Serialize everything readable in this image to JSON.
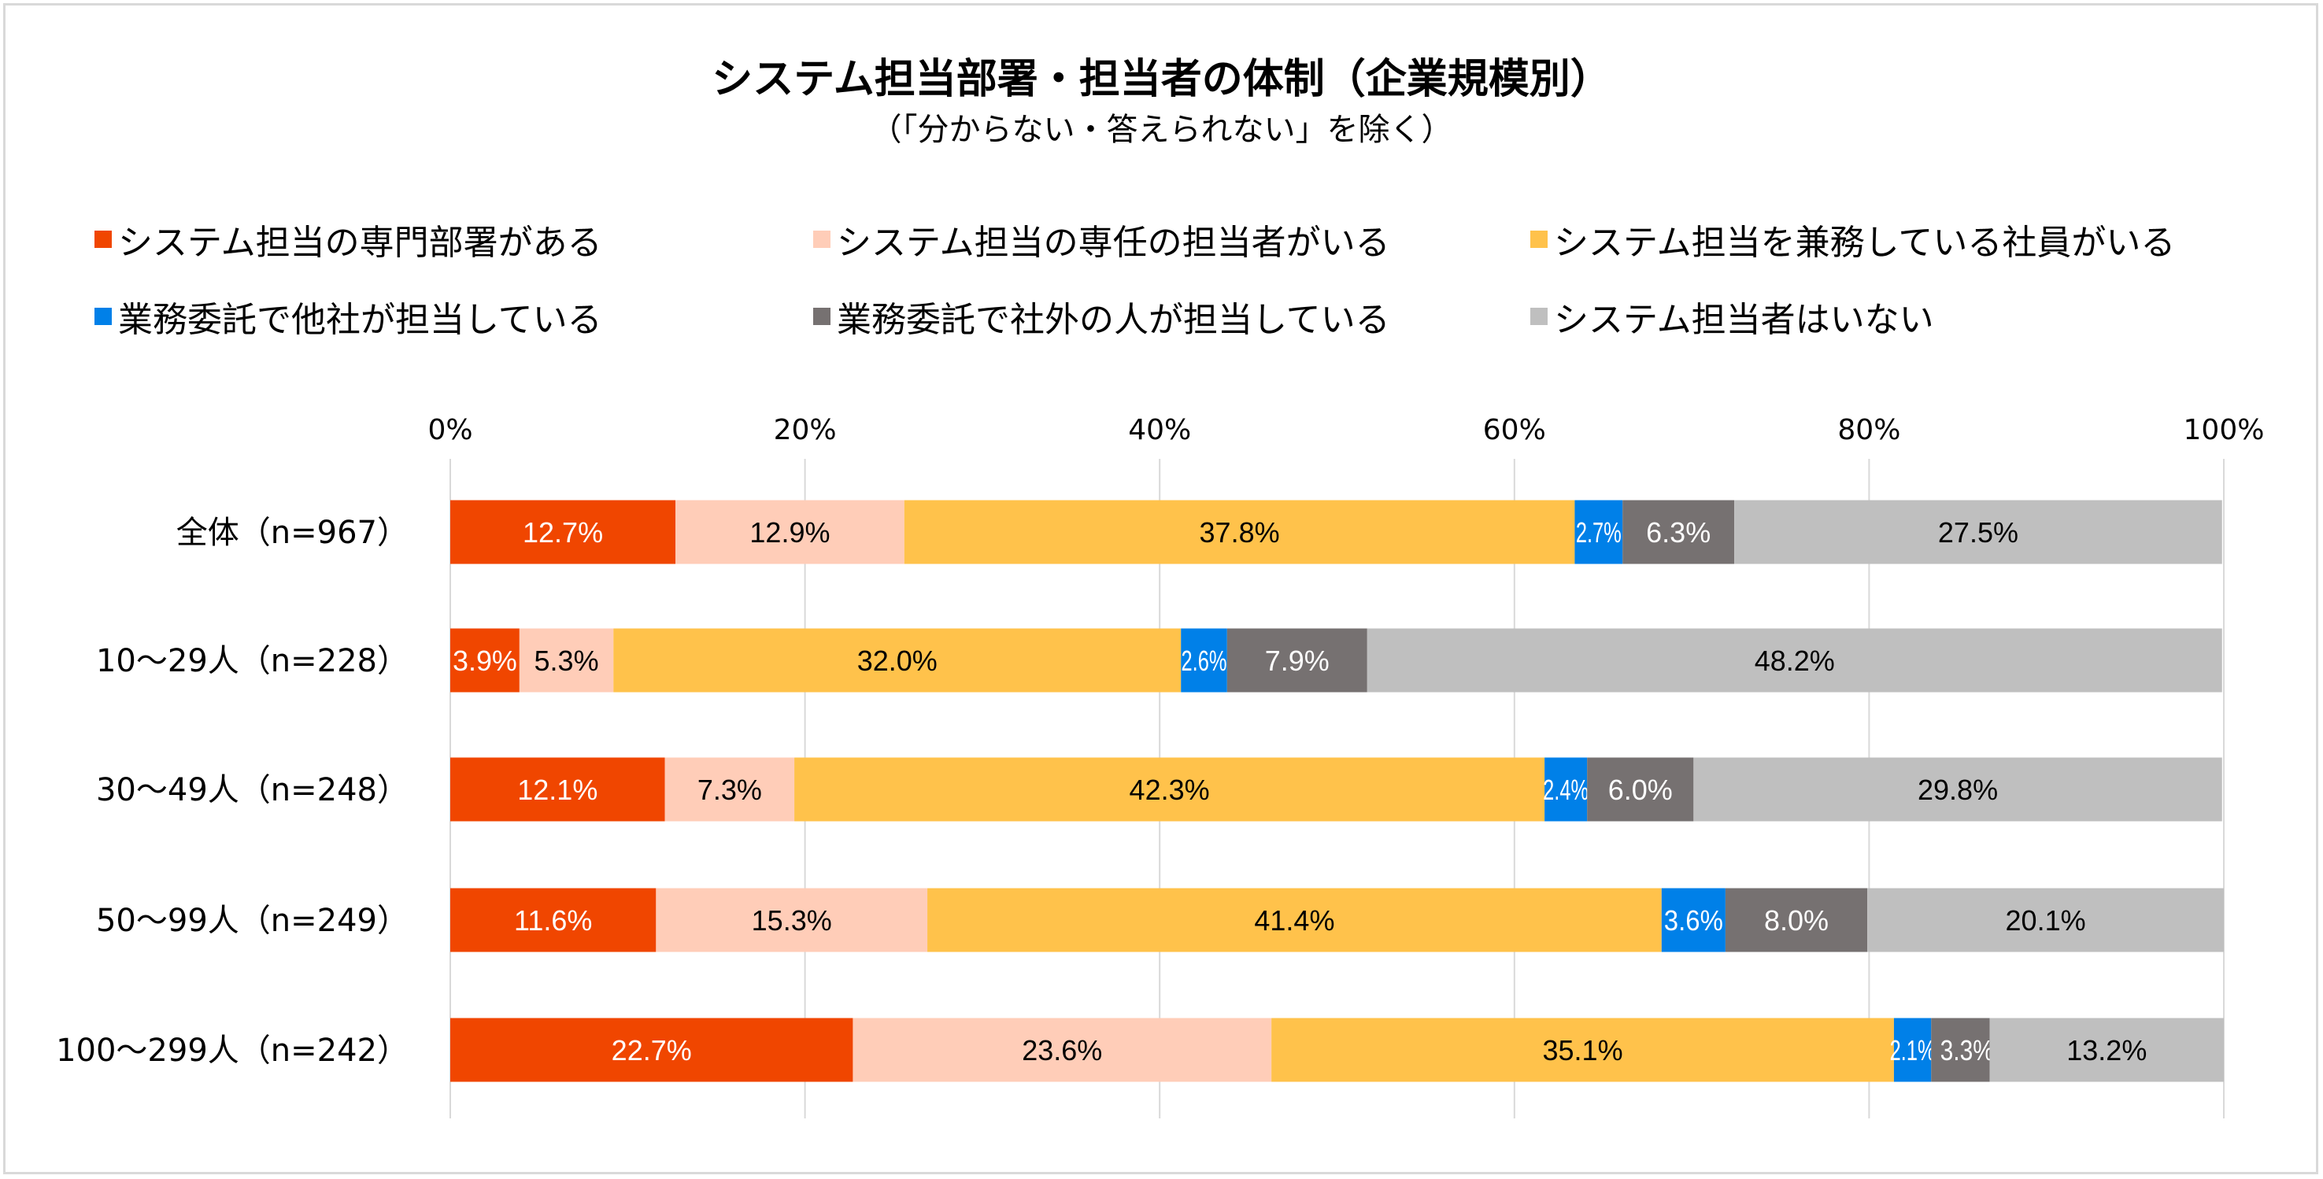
{
  "chart_data": {
    "type": "bar",
    "orientation": "horizontal",
    "stacked": "percent",
    "title": "システム担当部署・担当者の体制（企業規模別）",
    "subtitle": "（「分からない・答えられない」を除く）",
    "xlabel": "",
    "ylabel": "",
    "xlim": [
      0,
      100
    ],
    "x_ticks": [
      "0%",
      "20%",
      "40%",
      "60%",
      "80%",
      "100%"
    ],
    "grid": true,
    "legend_position": "top",
    "categories": [
      "全体（n=967）",
      "10〜29人（n=228）",
      "30〜49人（n=248）",
      "50〜99人（n=249）",
      "100〜299人（n=242）"
    ],
    "series": [
      {
        "name": "システム担当の専門部署がある",
        "color": "#F04600",
        "label_color": "#ffffff",
        "values": [
          12.7,
          3.9,
          12.1,
          11.6,
          22.7
        ]
      },
      {
        "name": "システム担当の専任の担当者がいる",
        "color": "#FFCDB8",
        "label_color": "#000000",
        "values": [
          12.9,
          5.3,
          7.3,
          15.3,
          23.6
        ]
      },
      {
        "name": "システム担当を兼務している社員がいる",
        "color": "#FFC24B",
        "label_color": "#000000",
        "values": [
          37.8,
          32.0,
          42.3,
          41.4,
          35.1
        ]
      },
      {
        "name": "業務委託で他社が担当している",
        "color": "#0080E8",
        "label_color": "#ffffff",
        "values": [
          2.7,
          2.6,
          2.4,
          3.6,
          2.1
        ]
      },
      {
        "name": "業務委託で社外の人が担当している",
        "color": "#767171",
        "label_color": "#ffffff",
        "values": [
          6.3,
          7.9,
          6.0,
          8.0,
          3.3
        ]
      },
      {
        "name": "システム担当者はいない",
        "color": "#BFBFBF",
        "label_color": "#000000",
        "values": [
          27.5,
          48.2,
          29.8,
          20.1,
          13.2
        ]
      }
    ]
  }
}
